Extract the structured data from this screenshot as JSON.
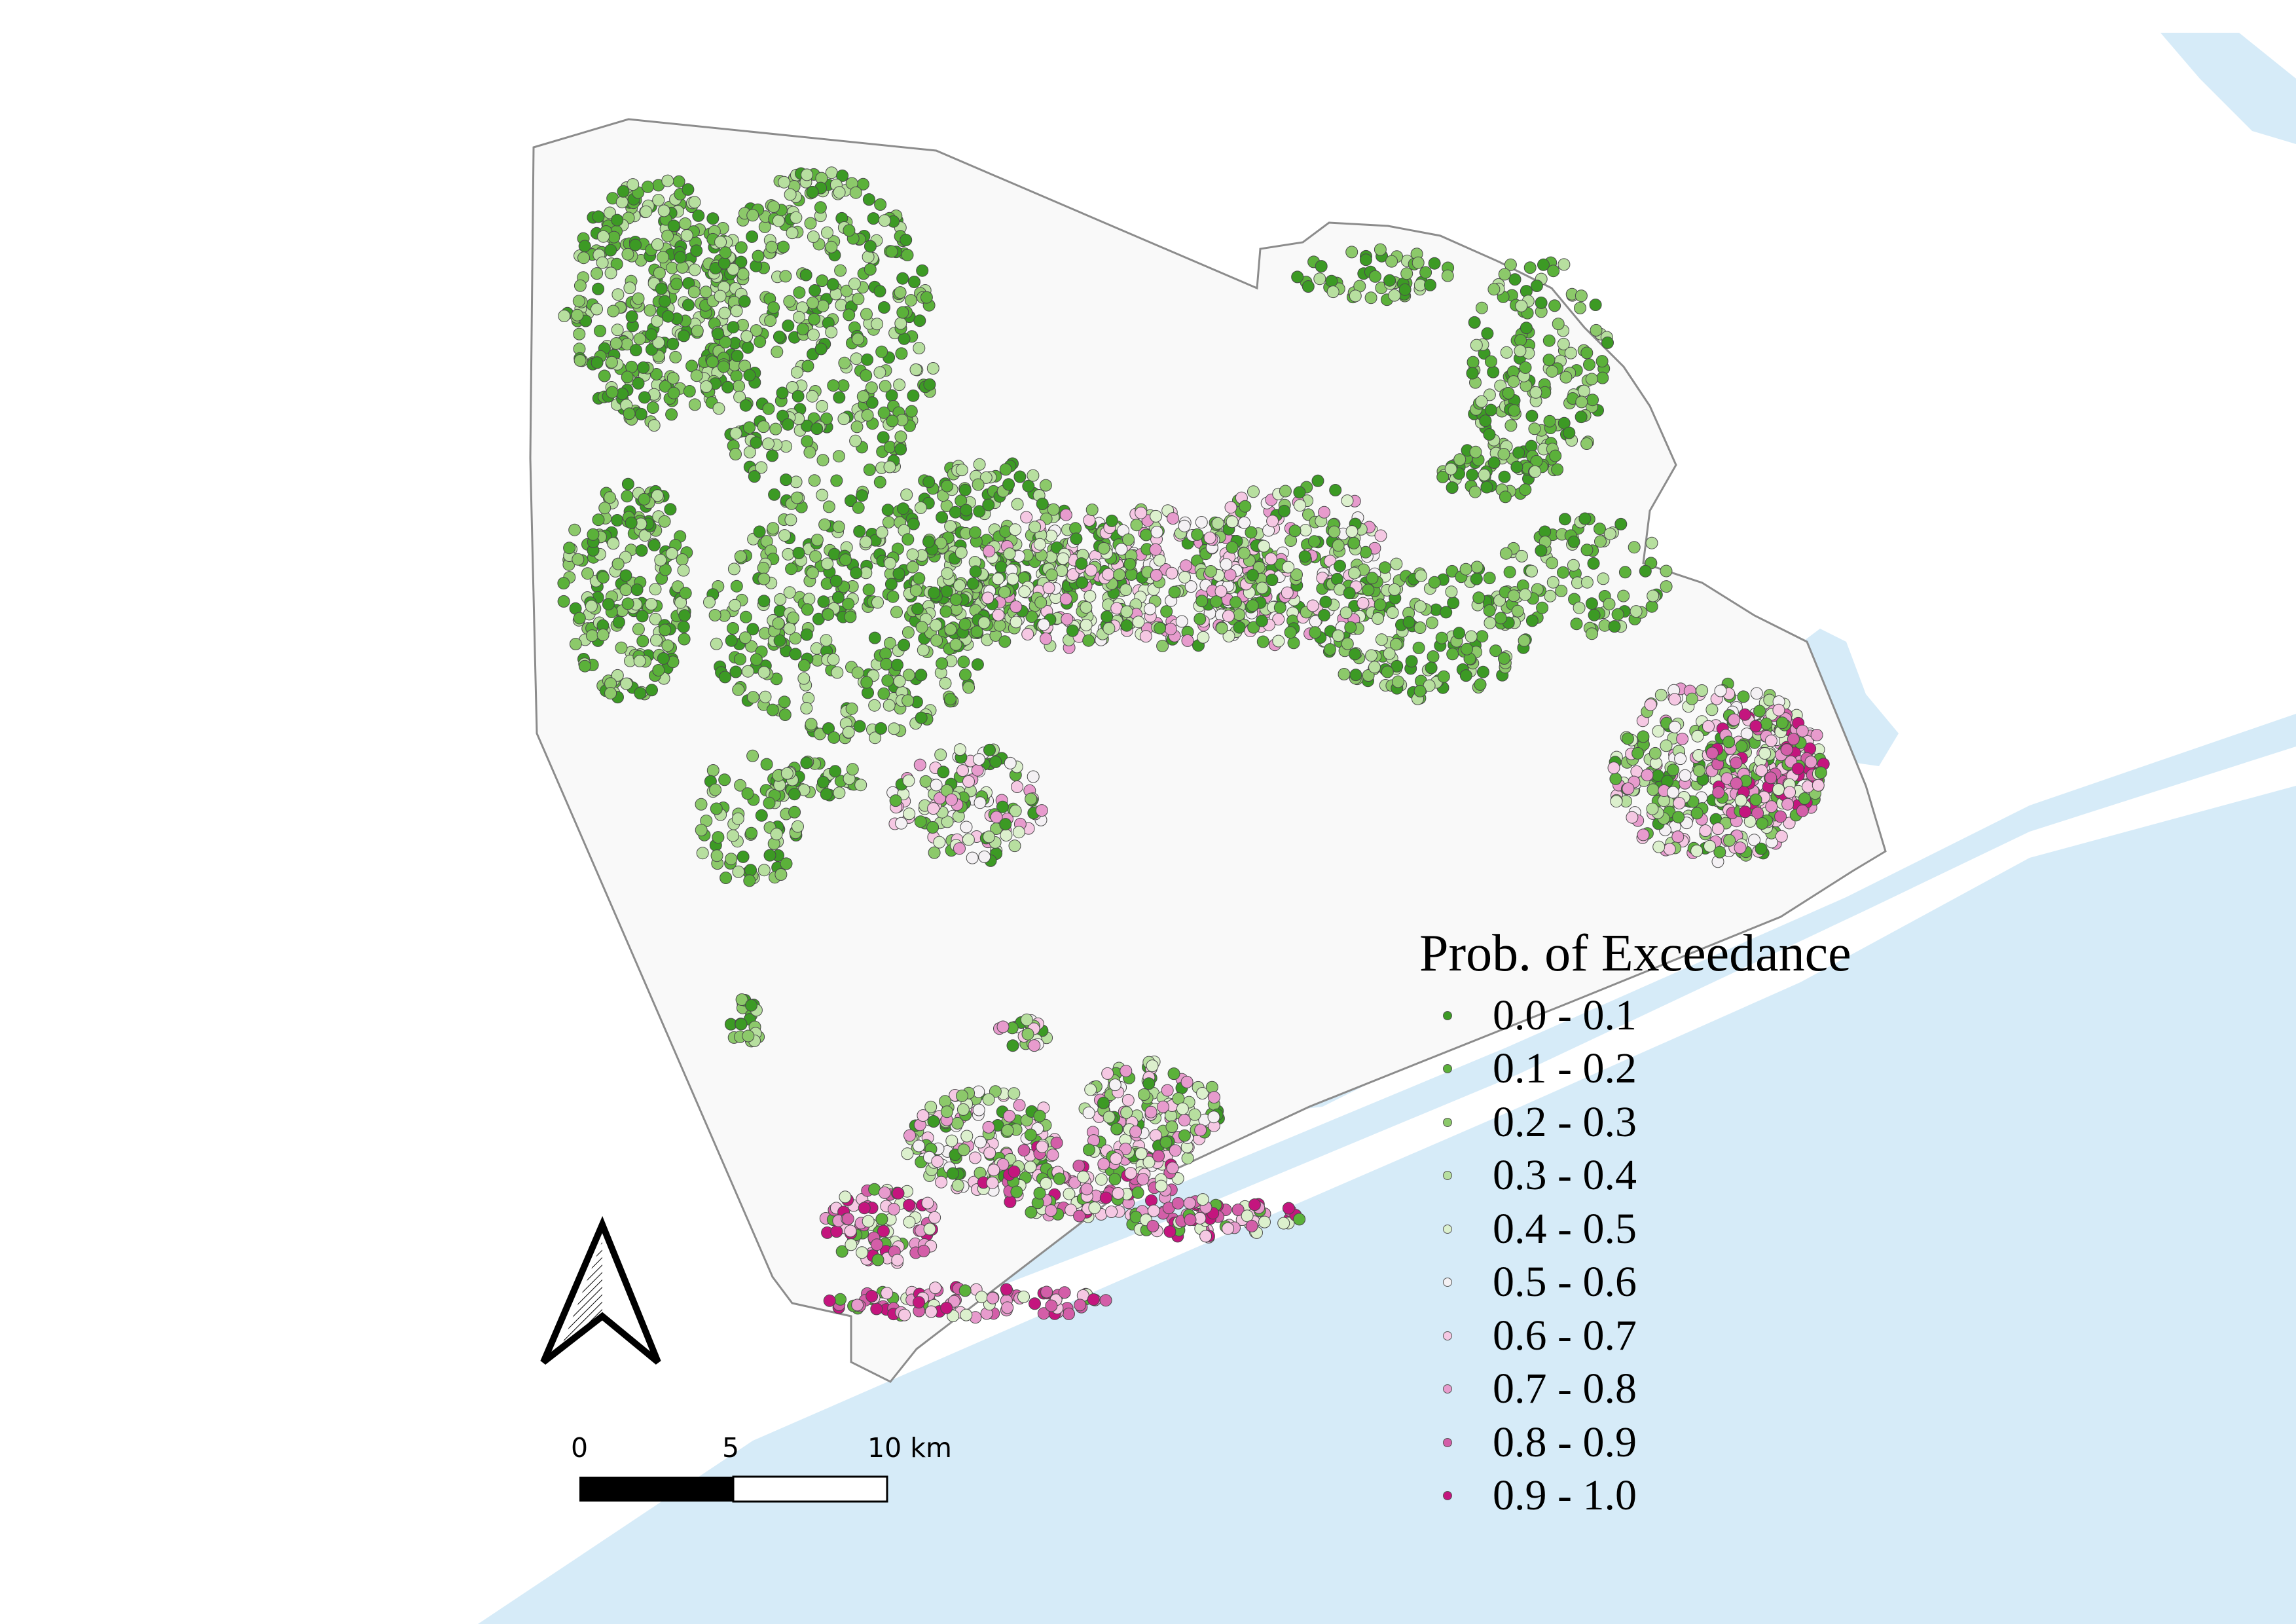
{
  "legend": {
    "title": "Prob. of Exceedance",
    "classes": [
      {
        "label": "0.0 - 0.1",
        "color": "#3c9a24"
      },
      {
        "label": "0.1 - 0.2",
        "color": "#5bb13a"
      },
      {
        "label": "0.2 - 0.3",
        "color": "#8cc96a"
      },
      {
        "label": "0.3 - 0.4",
        "color": "#b7df9f"
      },
      {
        "label": "0.4 - 0.5",
        "color": "#dcf0cd"
      },
      {
        "label": "0.5 - 0.6",
        "color": "#f4f1f4"
      },
      {
        "label": "0.6 - 0.7",
        "color": "#f5c8e3"
      },
      {
        "label": "0.7 - 0.8",
        "color": "#e79bcd"
      },
      {
        "label": "0.8 - 0.9",
        "color": "#d35ea8"
      },
      {
        "label": "0.9 - 1.0",
        "color": "#c4157e"
      }
    ]
  },
  "scalebar": {
    "tick_labels": [
      "0",
      "5",
      "10 km"
    ],
    "unit": "km"
  },
  "north_arrow": {
    "icon": "north-arrow-icon"
  },
  "colors": {
    "water": "#d6ebf8",
    "land": "#f9f9f9",
    "boundary": "#8c8c8c"
  }
}
